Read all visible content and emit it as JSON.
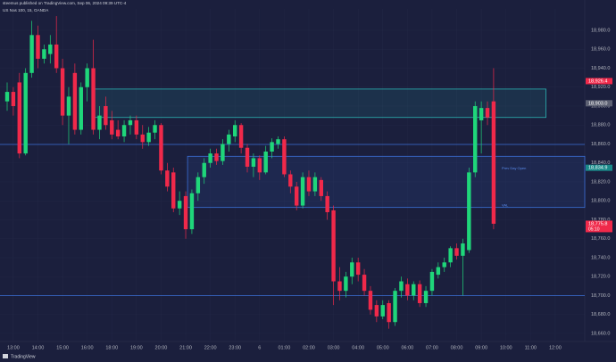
{
  "chart_data": {
    "type": "candlestick",
    "header": "steemus published on TradingView.com, Sep 06, 2024 09:39 UTC-4",
    "symbol": "US Nas 100, 15, OANDA",
    "footer": "TradingView",
    "up_color": "#1fd67a",
    "down_color": "#f0294a",
    "open": [
      18905,
      18915,
      18925,
      18850,
      18935,
      18975,
      18950,
      18955,
      18965,
      18940,
      18890,
      18935,
      18875,
      18920,
      18940,
      18875,
      18900,
      18885,
      18875,
      18868,
      18880,
      18885,
      18870,
      18862,
      18872,
      18880,
      18832,
      18830,
      18792,
      18805,
      18770,
      18808,
      18825,
      18840,
      18850,
      18842,
      18860,
      18868,
      18880,
      18856,
      18836,
      18845,
      18830,
      18852,
      18860,
      18865,
      18828,
      18815,
      18795,
      18825,
      18810,
      18822,
      18805,
      18790,
      18715,
      18705,
      18720,
      18735,
      18722,
      18705,
      18690,
      18678,
      18692,
      18672,
      18705,
      18712,
      18700,
      18712,
      18692,
      18705,
      18722,
      18730,
      18735,
      18750,
      18742,
      18748,
      18830,
      18885,
      18898,
      18905
    ],
    "high": [
      18925,
      18920,
      18935,
      18940,
      18990,
      18985,
      18965,
      18975,
      18995,
      18950,
      18920,
      18945,
      18925,
      18945,
      18970,
      18900,
      18910,
      18895,
      18885,
      18885,
      18890,
      18890,
      18880,
      18878,
      18885,
      18882,
      18840,
      18835,
      18810,
      18810,
      18812,
      18830,
      18845,
      18855,
      18855,
      18865,
      18875,
      18885,
      18882,
      18860,
      18850,
      18848,
      18858,
      18866,
      18868,
      18868,
      18832,
      18820,
      18830,
      18832,
      18830,
      18825,
      18810,
      18795,
      18730,
      18725,
      18740,
      18740,
      18728,
      18710,
      18695,
      18695,
      18695,
      18708,
      18720,
      18718,
      18715,
      18716,
      18710,
      18728,
      18735,
      18740,
      18752,
      18755,
      18760,
      18835,
      18905,
      18905,
      18905,
      18940
    ],
    "low": [
      18895,
      18890,
      18845,
      18848,
      18930,
      18940,
      18945,
      18945,
      18935,
      18880,
      18860,
      18870,
      18870,
      18905,
      18870,
      18865,
      18875,
      18865,
      18865,
      18862,
      18870,
      18865,
      18855,
      18858,
      18865,
      18828,
      18810,
      18788,
      18785,
      18760,
      18765,
      18800,
      18818,
      18835,
      18838,
      18838,
      18852,
      18862,
      18850,
      18830,
      18825,
      18822,
      18828,
      18845,
      18855,
      18825,
      18808,
      18790,
      18792,
      18805,
      18805,
      18800,
      18780,
      18690,
      18695,
      18698,
      18712,
      18715,
      18700,
      18680,
      18672,
      18675,
      18665,
      18668,
      18698,
      18695,
      18695,
      18688,
      18688,
      18700,
      18718,
      18725,
      18730,
      18738,
      18700,
      18745,
      18825,
      18850,
      18880,
      18770
    ],
    "close": [
      18915,
      18900,
      18850,
      18935,
      18975,
      18950,
      18960,
      18965,
      18940,
      18890,
      18910,
      18875,
      18920,
      18940,
      18875,
      18890,
      18880,
      18870,
      18868,
      18880,
      18885,
      18870,
      18862,
      18872,
      18880,
      18832,
      18815,
      18792,
      18800,
      18770,
      18808,
      18825,
      18840,
      18850,
      18842,
      18860,
      18870,
      18880,
      18856,
      18836,
      18845,
      18830,
      18852,
      18862,
      18865,
      18828,
      18815,
      18795,
      18825,
      18810,
      18825,
      18805,
      18788,
      18715,
      18705,
      18720,
      18735,
      18722,
      18705,
      18685,
      18678,
      18690,
      18672,
      18705,
      18715,
      18700,
      18712,
      18692,
      18705,
      18725,
      18730,
      18735,
      18750,
      18742,
      18755,
      18830,
      18900,
      18898,
      18888,
      18775.8
    ],
    "ylim": [
      18651.5,
      19002.6
    ],
    "yticks": [
      {
        "value": 18660,
        "label": "18,660.0"
      },
      {
        "value": 18680,
        "label": "18,680.0"
      },
      {
        "value": 18700,
        "label": "18,700.0"
      },
      {
        "value": 18720,
        "label": "18,720.0"
      },
      {
        "value": 18740,
        "label": "18,740.0"
      },
      {
        "value": 18760,
        "label": "18,760.0"
      },
      {
        "value": 18780,
        "label": "18,780.0"
      },
      {
        "value": 18800,
        "label": "18,800.0"
      },
      {
        "value": 18820,
        "label": "18,820.0"
      },
      {
        "value": 18840,
        "label": "18,840.0"
      },
      {
        "value": 18860,
        "label": "18,860.0"
      },
      {
        "value": 18880,
        "label": "18,880.0"
      },
      {
        "value": 18900,
        "label": "18,900.0"
      },
      {
        "value": 18920,
        "label": "18,920.0"
      },
      {
        "value": 18940,
        "label": "18,940.0"
      },
      {
        "value": 18960,
        "label": "18,960.0"
      },
      {
        "value": 18980,
        "label": "18,980.0"
      }
    ],
    "xlim": [
      -1.16,
      93.8
    ],
    "xticks": [
      {
        "value": 1,
        "label": "13:00"
      },
      {
        "value": 5,
        "label": "14:00"
      },
      {
        "value": 9,
        "label": "15:00"
      },
      {
        "value": 13,
        "label": "16:00"
      },
      {
        "value": 17,
        "label": "18:00"
      },
      {
        "value": 21,
        "label": "19:00"
      },
      {
        "value": 25,
        "label": "20:00"
      },
      {
        "value": 29,
        "label": "21:00"
      },
      {
        "value": 33,
        "label": "22:00"
      },
      {
        "value": 37,
        "label": "23:00"
      },
      {
        "value": 41,
        "label": "6"
      },
      {
        "value": 45,
        "label": "01:00"
      },
      {
        "value": 49,
        "label": "02:00"
      },
      {
        "value": 53,
        "label": "03:00"
      },
      {
        "value": 57,
        "label": "04:00"
      },
      {
        "value": 61,
        "label": "05:00"
      },
      {
        "value": 65,
        "label": "06:00"
      },
      {
        "value": 69,
        "label": "07:00"
      },
      {
        "value": 73,
        "label": "08:00"
      },
      {
        "value": 77,
        "label": "09:00"
      },
      {
        "value": 81,
        "label": "10:00"
      },
      {
        "value": 85,
        "label": "11:00"
      },
      {
        "value": 89,
        "label": "12:00"
      }
    ],
    "zones": [
      {
        "low": 18888,
        "high": 18918,
        "start": 14,
        "end": 87.5,
        "color": "#2bb3b3"
      },
      {
        "low": 18793,
        "high": 18847,
        "start": 29.3,
        "end": 93.8,
        "color": "#3b6fd6"
      }
    ],
    "lines": [
      {
        "value": 18859.5,
        "color": "#3b6fd6"
      },
      {
        "value": 18700,
        "color": "#3b6fd6"
      }
    ],
    "annotations": [
      {
        "text": "Prev Day Open",
        "value": 18834
      },
      {
        "text": "VAL",
        "value": 18795
      }
    ],
    "price_labels": [
      {
        "value": 18926.4,
        "label": "18,926.4",
        "color": "#f0294a"
      },
      {
        "value": 18903,
        "label": "18,903.0",
        "color": "#5d6173"
      },
      {
        "value": 18834.9,
        "label": "18,834.9",
        "color": "#1a8a8a"
      },
      {
        "value": 18775.8,
        "label": "18,775.8",
        "color": "#f0294a",
        "sub": "05:10"
      }
    ]
  }
}
